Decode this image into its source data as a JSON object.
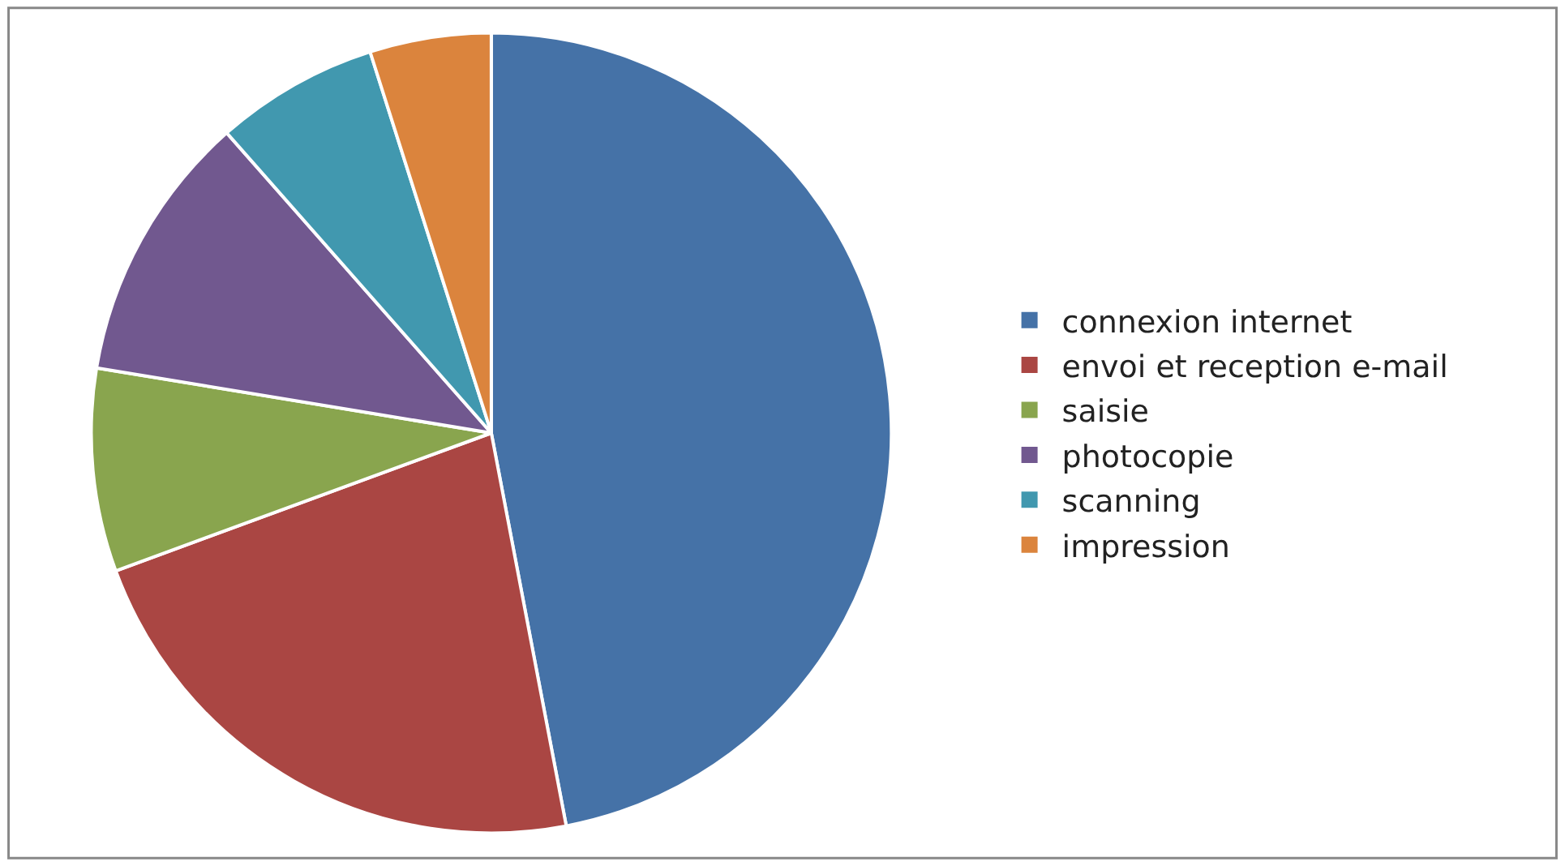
{
  "chart_data": {
    "type": "pie",
    "categories": [
      "connexion internet",
      "envoi et reception e-mail",
      "saisie",
      "photocopie",
      "scanning",
      "impression"
    ],
    "values": [
      47,
      22.4,
      8.2,
      10.9,
      6.6,
      4.9
    ],
    "colors": [
      "#4572a7",
      "#aa4643",
      "#89a54e",
      "#71588f",
      "#4198af",
      "#db843d"
    ],
    "legend": "right"
  }
}
